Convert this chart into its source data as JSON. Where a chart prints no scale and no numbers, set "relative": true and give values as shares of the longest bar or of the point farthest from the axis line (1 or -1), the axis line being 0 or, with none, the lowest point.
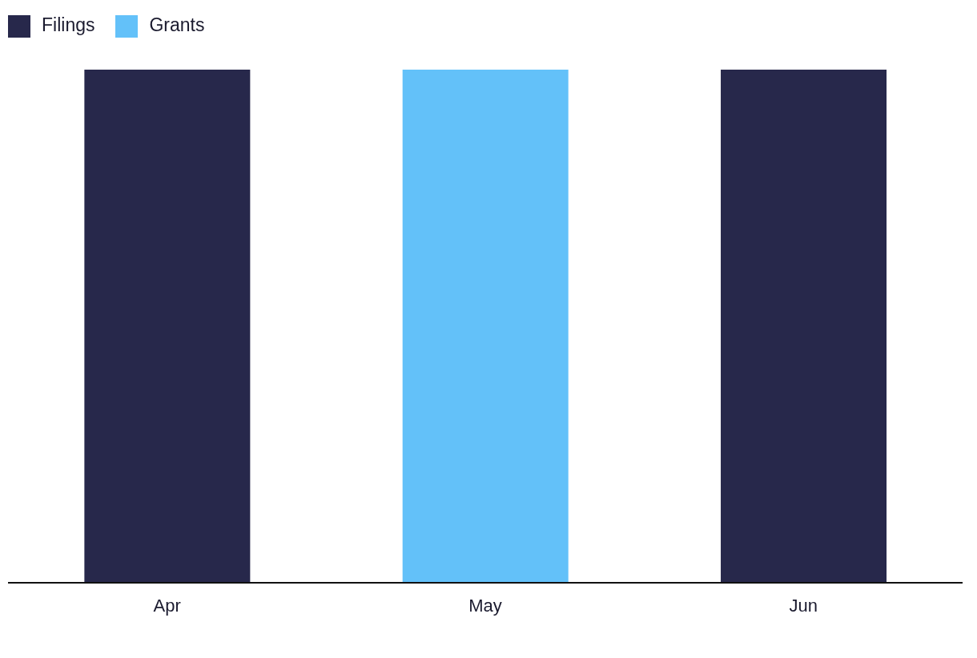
{
  "chart_data": {
    "type": "bar",
    "relative": true,
    "stacked": true,
    "legend": "top left",
    "categories": [
      "Apr",
      "May",
      "Jun"
    ],
    "series": [
      {
        "name": "Filings",
        "color": "#27284b",
        "values": [
          1,
          0,
          1
        ]
      },
      {
        "name": "Grants",
        "color": "#63c1f9",
        "values": [
          0,
          1,
          0
        ]
      }
    ]
  }
}
